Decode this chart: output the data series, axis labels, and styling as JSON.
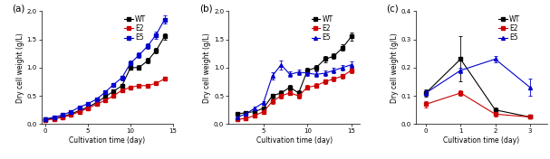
{
  "panel_a": {
    "label": "(a)",
    "WT": {
      "x": [
        0,
        1,
        2,
        3,
        4,
        5,
        6,
        7,
        8,
        9,
        10,
        11,
        12,
        13,
        14
      ],
      "y": [
        0.08,
        0.1,
        0.13,
        0.18,
        0.24,
        0.3,
        0.38,
        0.48,
        0.58,
        0.68,
        1.0,
        1.0,
        1.12,
        1.3,
        1.55
      ],
      "yerr": [
        0.005,
        0.008,
        0.01,
        0.01,
        0.015,
        0.015,
        0.02,
        0.02,
        0.03,
        0.03,
        0.04,
        0.04,
        0.05,
        0.05,
        0.06
      ],
      "color": "#000000",
      "marker": "s"
    },
    "E2": {
      "x": [
        0,
        1,
        2,
        3,
        4,
        5,
        6,
        7,
        8,
        9,
        10,
        11,
        12,
        13,
        14
      ],
      "y": [
        0.07,
        0.09,
        0.12,
        0.16,
        0.22,
        0.28,
        0.35,
        0.42,
        0.5,
        0.6,
        0.65,
        0.68,
        0.68,
        0.72,
        0.8
      ],
      "yerr": [
        0.005,
        0.008,
        0.01,
        0.01,
        0.015,
        0.015,
        0.015,
        0.02,
        0.02,
        0.025,
        0.025,
        0.025,
        0.025,
        0.03,
        0.035
      ],
      "color": "#cc0000",
      "marker": "s"
    },
    "E5": {
      "x": [
        0,
        1,
        2,
        3,
        4,
        5,
        6,
        7,
        8,
        9,
        10,
        11,
        12,
        13,
        14
      ],
      "y": [
        0.09,
        0.12,
        0.16,
        0.22,
        0.3,
        0.36,
        0.44,
        0.56,
        0.7,
        0.82,
        1.08,
        1.22,
        1.38,
        1.58,
        1.85
      ],
      "yerr": [
        0.008,
        0.01,
        0.01,
        0.015,
        0.02,
        0.02,
        0.025,
        0.03,
        0.03,
        0.04,
        0.045,
        0.05,
        0.055,
        0.065,
        0.07
      ],
      "color": "#0000cc",
      "marker": "s"
    },
    "ylim": [
      0.0,
      2.0
    ],
    "yticks": [
      0.0,
      0.5,
      1.0,
      1.5,
      2.0
    ],
    "xlim": [
      -0.5,
      15
    ],
    "xticks": [
      0,
      5,
      10,
      15
    ],
    "xlabel": "Cultivation time (day)",
    "ylabel": "Dry cell weight (g/L)"
  },
  "panel_b": {
    "label": "(b)",
    "WT": {
      "x": [
        2,
        3,
        4,
        5,
        6,
        7,
        8,
        9,
        10,
        11,
        12,
        13,
        14,
        15
      ],
      "y": [
        0.18,
        0.2,
        0.22,
        0.28,
        0.5,
        0.55,
        0.65,
        0.55,
        0.95,
        1.0,
        1.15,
        1.2,
        1.35,
        1.55
      ],
      "yerr": [
        0.02,
        0.025,
        0.02,
        0.03,
        0.04,
        0.04,
        0.05,
        0.05,
        0.045,
        0.045,
        0.05,
        0.05,
        0.055,
        0.07
      ],
      "color": "#000000",
      "marker": "s"
    },
    "E2": {
      "x": [
        2,
        3,
        4,
        5,
        6,
        7,
        8,
        9,
        10,
        11,
        12,
        13,
        14,
        15
      ],
      "y": [
        0.08,
        0.1,
        0.15,
        0.22,
        0.4,
        0.5,
        0.55,
        0.5,
        0.65,
        0.68,
        0.75,
        0.8,
        0.85,
        0.95
      ],
      "yerr": [
        0.01,
        0.01,
        0.015,
        0.02,
        0.04,
        0.04,
        0.04,
        0.04,
        0.04,
        0.04,
        0.04,
        0.04,
        0.04,
        0.05
      ],
      "color": "#cc0000",
      "marker": "s"
    },
    "E5": {
      "x": [
        2,
        3,
        4,
        5,
        6,
        7,
        8,
        9,
        10,
        11,
        12,
        13,
        14,
        15
      ],
      "y": [
        0.12,
        0.18,
        0.28,
        0.38,
        0.85,
        1.05,
        0.88,
        0.92,
        0.9,
        0.88,
        0.9,
        0.95,
        1.0,
        1.05
      ],
      "yerr": [
        0.01,
        0.015,
        0.025,
        0.03,
        0.06,
        0.08,
        0.05,
        0.05,
        0.05,
        0.05,
        0.05,
        0.05,
        0.05,
        0.06
      ],
      "color": "#0000cc",
      "marker": "^"
    },
    "ylim": [
      0.0,
      2.0
    ],
    "yticks": [
      0.0,
      0.5,
      1.0,
      1.5,
      2.0
    ],
    "xlim": [
      1,
      16
    ],
    "xticks": [
      5,
      10,
      15
    ],
    "xlabel": "Cultivation time (day)",
    "ylabel": "Dry cell weight (g/L)"
  },
  "panel_c": {
    "label": "(c)",
    "WT": {
      "x": [
        0,
        1,
        2,
        3
      ],
      "y": [
        0.11,
        0.23,
        0.05,
        0.025
      ],
      "yerr": [
        0.012,
        0.08,
        0.008,
        0.005
      ],
      "color": "#000000",
      "marker": "s"
    },
    "E2": {
      "x": [
        0,
        1,
        2,
        3
      ],
      "y": [
        0.07,
        0.11,
        0.035,
        0.025
      ],
      "yerr": [
        0.01,
        0.01,
        0.007,
        0.005
      ],
      "color": "#cc0000",
      "marker": "s"
    },
    "E5": {
      "x": [
        0,
        1,
        2,
        3
      ],
      "y": [
        0.11,
        0.19,
        0.23,
        0.13
      ],
      "yerr": [
        0.01,
        0.01,
        0.01,
        0.03
      ],
      "color": "#0000cc",
      "marker": "^"
    },
    "ylim": [
      0.0,
      0.4
    ],
    "yticks": [
      0.0,
      0.1,
      0.2,
      0.3,
      0.4
    ],
    "xlim": [
      -0.3,
      3.5
    ],
    "xticks": [
      0,
      1,
      2,
      3
    ],
    "xlabel": "Cultivation time (day)",
    "ylabel": "Dry cell weight (g/L)"
  },
  "series_keys": [
    "WT",
    "E2",
    "E5"
  ],
  "markersize": 2.8,
  "linewidth": 0.8,
  "capsize": 1.5,
  "elinewidth": 0.6,
  "capthick": 0.6,
  "fontsize_label": 5.5,
  "fontsize_tick": 5.0,
  "fontsize_legend": 5.5,
  "fontsize_panel": 7.5
}
